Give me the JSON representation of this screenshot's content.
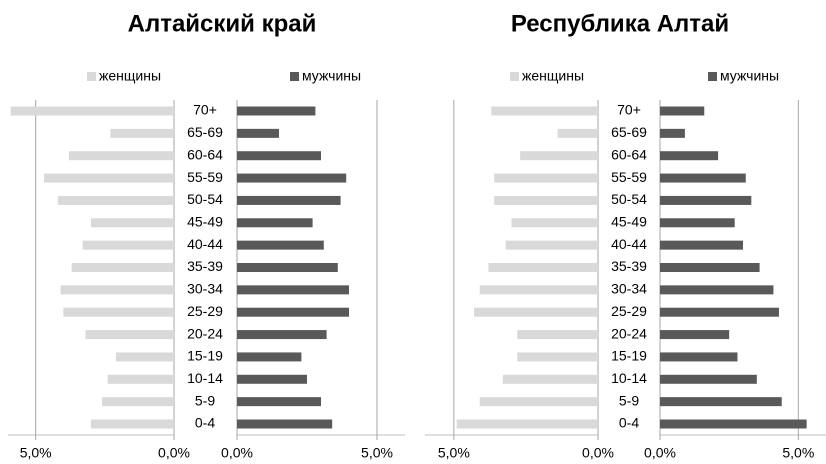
{
  "chart_data": [
    {
      "type": "bar",
      "orientation": "horizontal",
      "title": "Алтайский край",
      "categories": [
        "70+",
        "65-69",
        "60-64",
        "55-59",
        "50-54",
        "45-49",
        "40-44",
        "35-39",
        "30-34",
        "25-29",
        "20-24",
        "15-19",
        "10-14",
        "5-9",
        "0-4"
      ],
      "series": [
        {
          "name": "женщины",
          "color": "#d9d9d9",
          "values": [
            5.9,
            2.3,
            3.8,
            4.7,
            4.2,
            3.0,
            3.3,
            3.7,
            4.1,
            4.0,
            3.2,
            2.1,
            2.4,
            2.6,
            3.0
          ]
        },
        {
          "name": "мужчины",
          "color": "#595959",
          "values": [
            2.8,
            1.5,
            3.0,
            3.9,
            3.7,
            2.7,
            3.1,
            3.6,
            4.0,
            4.0,
            3.2,
            2.3,
            2.5,
            3.0,
            3.4
          ]
        }
      ],
      "xlim": [
        0,
        6
      ],
      "xticks": [
        {
          "value": 0,
          "label": "0,0%"
        },
        {
          "value": 5,
          "label": "5,0%"
        }
      ],
      "grid": true
    },
    {
      "type": "bar",
      "orientation": "horizontal",
      "title": "Республика Алтай",
      "categories": [
        "70+",
        "65-69",
        "60-64",
        "55-59",
        "50-54",
        "45-49",
        "40-44",
        "35-39",
        "30-34",
        "25-29",
        "20-24",
        "15-19",
        "10-14",
        "5-9",
        "0-4"
      ],
      "series": [
        {
          "name": "женщины",
          "color": "#d9d9d9",
          "values": [
            3.7,
            1.4,
            2.7,
            3.6,
            3.6,
            3.0,
            3.2,
            3.8,
            4.1,
            4.3,
            2.8,
            2.8,
            3.3,
            4.1,
            4.9
          ]
        },
        {
          "name": "мужчины",
          "color": "#595959",
          "values": [
            1.6,
            0.9,
            2.1,
            3.1,
            3.3,
            2.7,
            3.0,
            3.6,
            4.1,
            4.3,
            2.5,
            2.8,
            3.5,
            4.4,
            5.3
          ]
        }
      ],
      "xlim": [
        0,
        6
      ],
      "xticks": [
        {
          "value": 0,
          "label": "0,0%"
        },
        {
          "value": 5,
          "label": "5,0%"
        }
      ],
      "grid": true
    }
  ]
}
